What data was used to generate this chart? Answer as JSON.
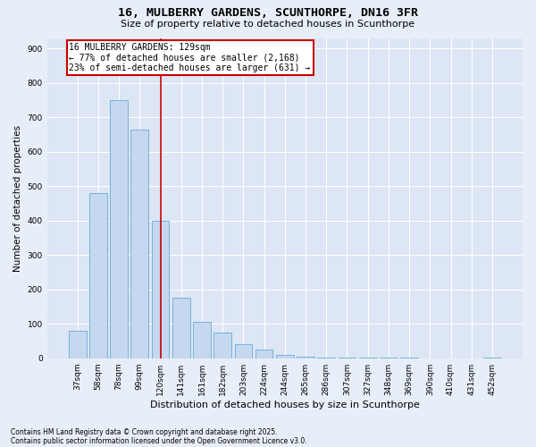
{
  "title": "16, MULBERRY GARDENS, SCUNTHORPE, DN16 3FR",
  "subtitle": "Size of property relative to detached houses in Scunthorpe",
  "xlabel": "Distribution of detached houses by size in Scunthorpe",
  "ylabel": "Number of detached properties",
  "footnote1": "Contains HM Land Registry data © Crown copyright and database right 2025.",
  "footnote2": "Contains public sector information licensed under the Open Government Licence v3.0.",
  "annotation_line1": "16 MULBERRY GARDENS: 129sqm",
  "annotation_line2": "← 77% of detached houses are smaller (2,168)",
  "annotation_line3": "23% of semi-detached houses are larger (631) →",
  "bar_color": "#c5d8ef",
  "bar_edge_color": "#6aaad4",
  "vline_color": "#cc0000",
  "vline_idx": 4,
  "categories": [
    "37sqm",
    "58sqm",
    "78sqm",
    "99sqm",
    "120sqm",
    "141sqm",
    "161sqm",
    "182sqm",
    "203sqm",
    "224sqm",
    "244sqm",
    "265sqm",
    "286sqm",
    "307sqm",
    "327sqm",
    "348sqm",
    "369sqm",
    "390sqm",
    "410sqm",
    "431sqm",
    "452sqm"
  ],
  "values": [
    80,
    480,
    750,
    665,
    400,
    175,
    105,
    75,
    42,
    26,
    10,
    5,
    3,
    2,
    1,
    1,
    1,
    0,
    0,
    0,
    2
  ],
  "ylim": [
    0,
    930
  ],
  "yticks": [
    0,
    100,
    200,
    300,
    400,
    500,
    600,
    700,
    800,
    900
  ],
  "bg_color": "#e8eef8",
  "plot_bg_color": "#dce6f5",
  "grid_color": "#ffffff",
  "annotation_box_color": "#cc0000",
  "title_fontsize": 9.5,
  "subtitle_fontsize": 8,
  "ylabel_fontsize": 7.5,
  "xlabel_fontsize": 8,
  "tick_fontsize": 6.5,
  "footnote_fontsize": 5.5,
  "annotation_fontsize": 7
}
